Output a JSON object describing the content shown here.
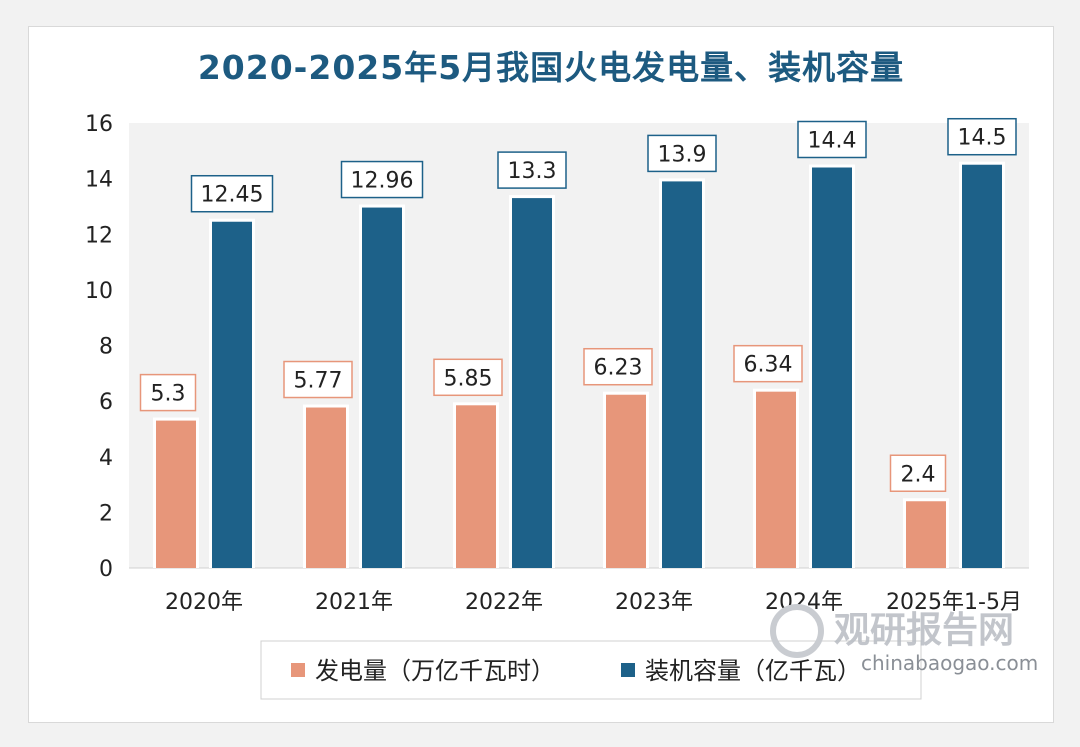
{
  "chart_data": {
    "type": "bar",
    "title": "2020-2025年5月我国火电发电量、装机容量",
    "categories": [
      "2020年",
      "2021年",
      "2022年",
      "2023年",
      "2024年",
      "2025年1-5月"
    ],
    "series": [
      {
        "name": "发电量（万亿千瓦时）",
        "color": "#e7967a",
        "values": [
          5.3,
          5.77,
          5.85,
          6.23,
          6.34,
          2.4
        ],
        "labels": [
          "5.3",
          "5.77",
          "5.85",
          "6.23",
          "6.34",
          "2.4"
        ]
      },
      {
        "name": "装机容量（亿千瓦）",
        "color": "#1d6189",
        "values": [
          12.45,
          12.96,
          13.3,
          13.9,
          14.4,
          14.5
        ],
        "labels": [
          "12.45",
          "12.96",
          "13.3",
          "13.9",
          "14.4",
          "14.5"
        ]
      }
    ],
    "yticks": [
      "0",
      "2",
      "4",
      "6",
      "8",
      "10",
      "12",
      "14",
      "16"
    ],
    "ylim": [
      0,
      16
    ],
    "xlabel": "",
    "ylabel": "",
    "legend_position": "bottom",
    "grid": false
  },
  "colors": {
    "title": "#1d5a80",
    "plot_bg": "#f2f2f2"
  },
  "watermark": {
    "brand": "观研报告网",
    "url": "chinabaogao.com"
  }
}
